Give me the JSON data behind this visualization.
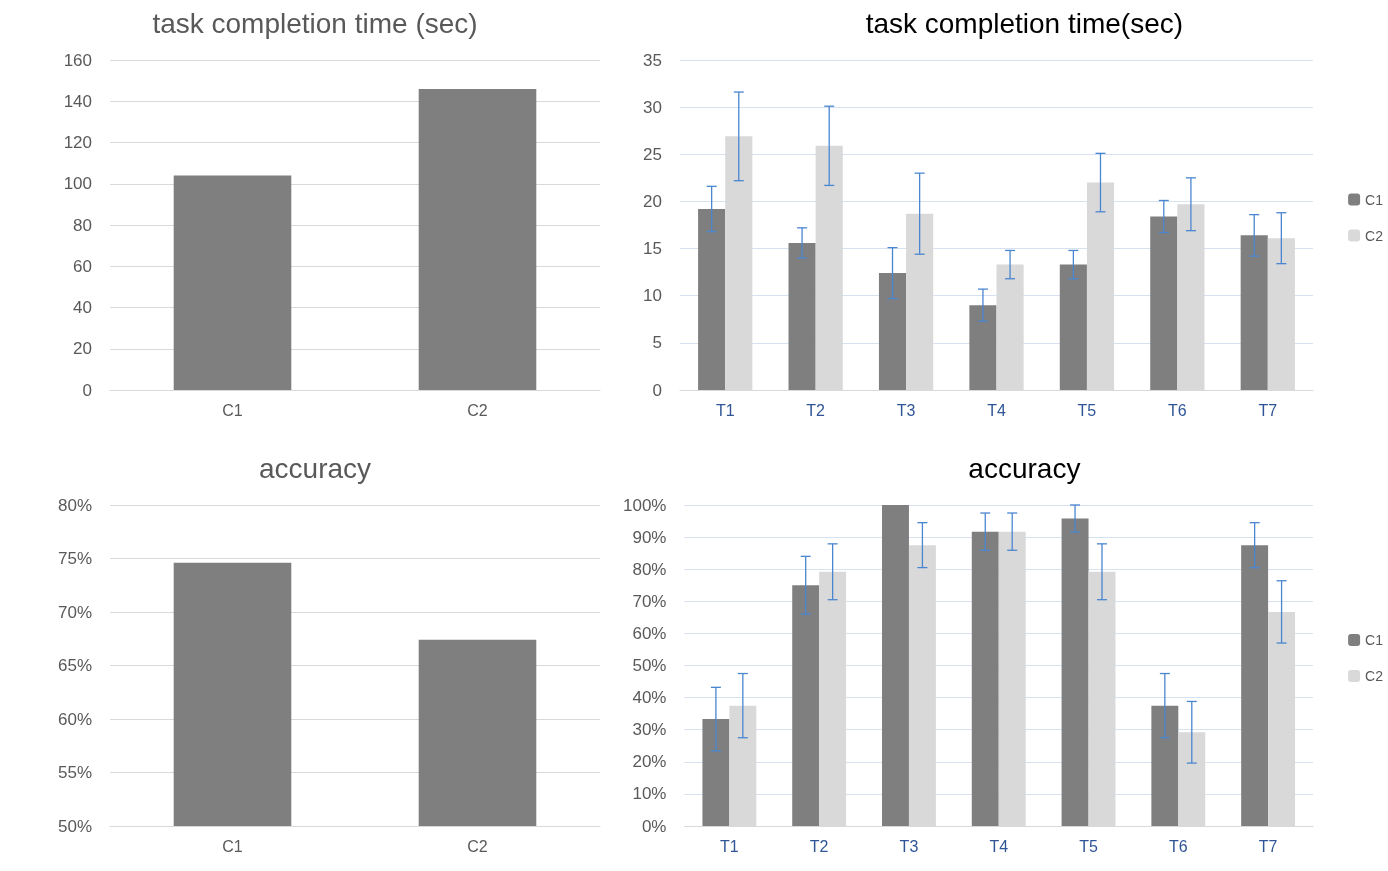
{
  "chart_data": [
    {
      "type": "bar",
      "title": "task completion time (sec)",
      "categories": [
        "C1",
        "C2"
      ],
      "values": [
        104,
        146
      ],
      "color": "#7f7f7f",
      "ylim": [
        0,
        160
      ],
      "yticks": [
        0,
        20,
        40,
        60,
        80,
        100,
        120,
        140,
        160
      ],
      "grid": "y",
      "legend": false
    },
    {
      "type": "bar",
      "title": "task completion time(sec)",
      "categories": [
        "T1",
        "T2",
        "T3",
        "T4",
        "T5",
        "T6",
        "T7"
      ],
      "series": [
        {
          "name": "C1",
          "color": "#7f7f7f",
          "values": [
            19.2,
            15.6,
            12.4,
            9,
            13.3,
            18.4,
            16.4
          ],
          "errors": [
            2.4,
            1.6,
            2.7,
            1.7,
            1.5,
            1.7,
            2.2
          ]
        },
        {
          "name": "C2",
          "color": "#d9d9d9",
          "values": [
            26.9,
            25.9,
            18.7,
            13.3,
            22,
            19.7,
            16.1
          ],
          "errors": [
            4.7,
            4.2,
            4.3,
            1.5,
            3.1,
            2.8,
            2.7
          ]
        }
      ],
      "ylim": [
        0,
        35
      ],
      "yticks": [
        0,
        5,
        10,
        15,
        20,
        25,
        30,
        35
      ],
      "grid": "y",
      "legend": "right"
    },
    {
      "type": "bar",
      "title": "accuracy",
      "categories": [
        "C1",
        "C2"
      ],
      "values": [
        74.6,
        67.4
      ],
      "color": "#7f7f7f",
      "ylim": [
        50,
        80
      ],
      "yticks": [
        {
          "value": 50,
          "label": "50%"
        },
        {
          "value": 55,
          "label": "55%"
        },
        {
          "value": 60,
          "label": "60%"
        },
        {
          "value": 65,
          "label": "65%"
        },
        {
          "value": 70,
          "label": "70%"
        },
        {
          "value": 75,
          "label": "75%"
        },
        {
          "value": 80,
          "label": "80%"
        }
      ],
      "grid": "y",
      "legend": false
    },
    {
      "type": "bar",
      "title": "accuracy",
      "categories": [
        "T1",
        "T2",
        "T3",
        "T4",
        "T5",
        "T6",
        "T7"
      ],
      "series": [
        {
          "name": "C1",
          "color": "#7f7f7f",
          "values": [
            33.3,
            75,
            100,
            91.7,
            95.8,
            37.5,
            87.5
          ],
          "errors": [
            9.9,
            9,
            null,
            5.8,
            4.2,
            10,
            7
          ]
        },
        {
          "name": "C2",
          "color": "#d9d9d9",
          "values": [
            37.5,
            79.2,
            87.5,
            91.7,
            79.2,
            29.2,
            66.7
          ],
          "errors": [
            10,
            8.7,
            7,
            5.8,
            8.7,
            9.6,
            9.7
          ]
        }
      ],
      "ylim": [
        0,
        100
      ],
      "yticks": [
        {
          "value": 0,
          "label": "0%"
        },
        {
          "value": 10,
          "label": "10%"
        },
        {
          "value": 20,
          "label": "20%"
        },
        {
          "value": 30,
          "label": "30%"
        },
        {
          "value": 40,
          "label": "40%"
        },
        {
          "value": 50,
          "label": "50%"
        },
        {
          "value": 60,
          "label": "60%"
        },
        {
          "value": 70,
          "label": "70%"
        },
        {
          "value": 80,
          "label": "80%"
        },
        {
          "value": 90,
          "label": "90%"
        },
        {
          "value": 100,
          "label": "100%"
        }
      ],
      "grid": "y",
      "legend": "right"
    }
  ]
}
